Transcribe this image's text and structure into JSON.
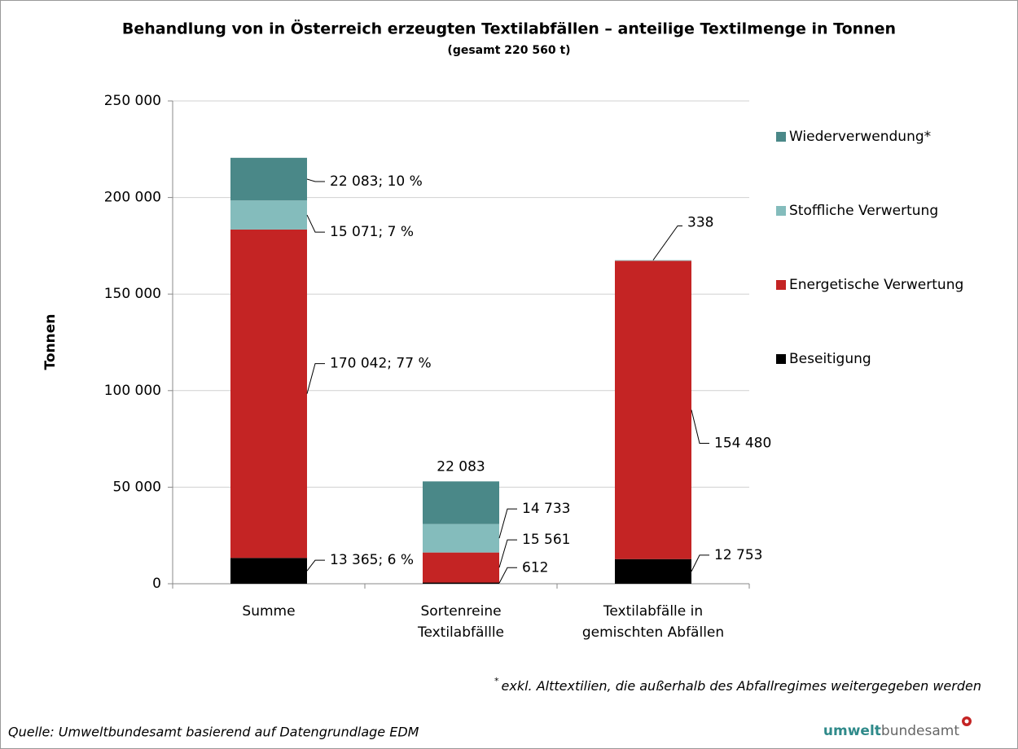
{
  "chart_data": {
    "type": "stacked_bar",
    "title": "Behandlung von in Österreich erzeugten Textilabfällen – anteilige Textilmenge in Tonnen",
    "subtitle": "(gesamt 220 560 t)",
    "y_label": "Tonnen",
    "categories": [
      [
        "Summe"
      ],
      [
        "Sortenreine",
        "Textilabfällle"
      ],
      [
        "Textilabfälle in",
        "gemischten Abfällen"
      ]
    ],
    "series": [
      {
        "name": "Beseitigung",
        "color": "#000000",
        "values": [
          13365,
          612,
          12753
        ],
        "value_labels": [
          "13 365; 6 %",
          "612",
          "12 753"
        ]
      },
      {
        "name": "Energetische Verwertung",
        "color": "#c42424",
        "values": [
          170042,
          15561,
          154480
        ],
        "value_labels": [
          "170 042; 77 %",
          "15 561",
          "154 480"
        ]
      },
      {
        "name": "Stoffliche Verwertung",
        "color": "#84bcbc",
        "values": [
          15071,
          14733,
          338
        ],
        "value_labels": [
          "15 071; 7 %",
          "14 733",
          "338"
        ]
      },
      {
        "name": "Wiederverwendung*",
        "color": "#4a8888",
        "values": [
          22083,
          22083,
          null
        ],
        "value_labels": [
          "22 083; 10 %",
          "22 083",
          null
        ]
      }
    ],
    "ylim": [
      0,
      250000
    ],
    "yticks": [
      0,
      {
        "value": 50000,
        "label": "50 000"
      },
      {
        "value": 100000,
        "label": "100 000"
      },
      {
        "value": 150000,
        "label": "150 000"
      },
      {
        "value": 200000,
        "label": "200 000"
      },
      {
        "value": 250000,
        "label": "250 000"
      }
    ],
    "grid": true,
    "legend": "right",
    "footnote_marker": "*",
    "footnote": "exkl. Alttextilien, die außerhalb des Abfallregimes weitergegeben werden"
  },
  "source": "Quelle: Umweltbundesamt basierend auf Datengrundlage EDM",
  "logo": [
    "umwelt",
    "bundesamt"
  ]
}
